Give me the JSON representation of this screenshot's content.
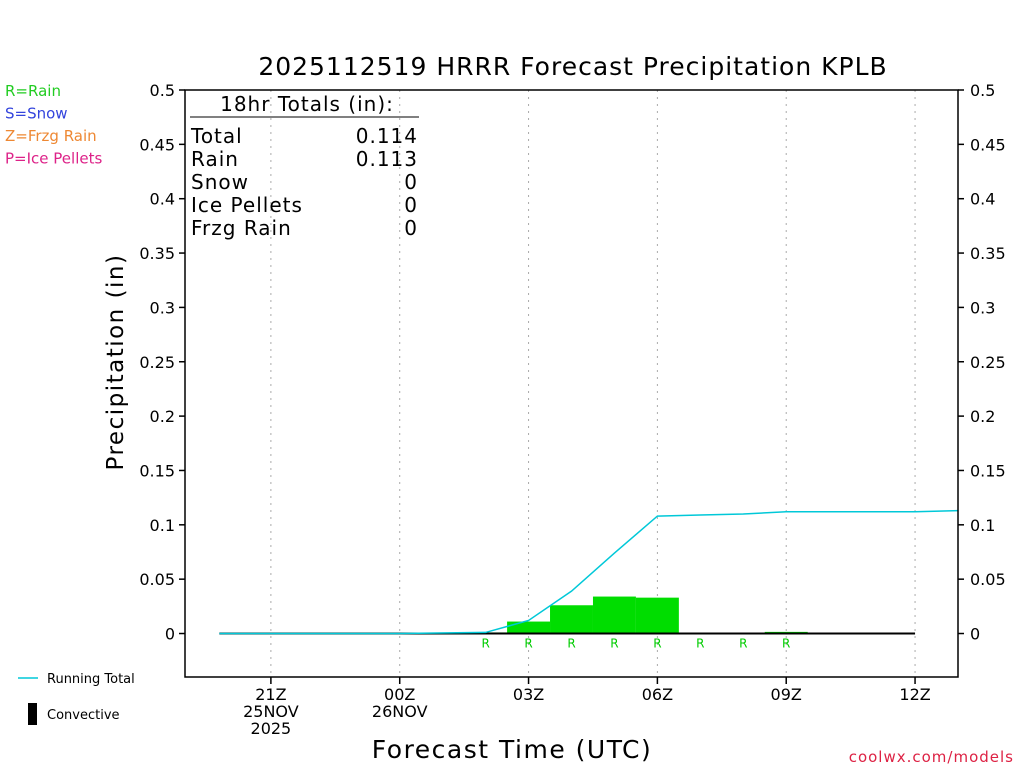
{
  "chart_data": {
    "type": "bar",
    "title": "2025112519 HRRR Forecast Precipitation KPLB",
    "xlabel": "Forecast Time (UTC)",
    "ylabel": "Precipitation (in)",
    "ylim": [
      -0.04,
      0.5
    ],
    "y_ticks": [
      "0.5",
      "0.45",
      "0.4",
      "0.35",
      "0.3",
      "0.25",
      "0.2",
      "0.15",
      "0.1",
      "0.05",
      "0"
    ],
    "y_tick_values": [
      0.5,
      0.45,
      0.4,
      0.35,
      0.3,
      0.25,
      0.2,
      0.15,
      0.1,
      0.05,
      0
    ],
    "x_range_hours": [
      19,
      37
    ],
    "x_ticks": [
      {
        "hour": 21,
        "lines": [
          "21Z",
          "25NOV",
          "2025"
        ]
      },
      {
        "hour": 24,
        "lines": [
          "00Z",
          "26NOV"
        ]
      },
      {
        "hour": 27,
        "lines": [
          "03Z"
        ]
      },
      {
        "hour": 30,
        "lines": [
          "06Z"
        ]
      },
      {
        "hour": 33,
        "lines": [
          "09Z"
        ]
      },
      {
        "hour": 36,
        "lines": [
          "12Z"
        ]
      }
    ],
    "grid": true,
    "bars": {
      "name": "Rain",
      "color": "#00dd00",
      "hours": [
        20,
        21,
        22,
        23,
        24,
        25,
        26,
        27,
        28,
        29,
        30,
        31,
        32,
        33,
        34,
        35,
        36
      ],
      "values": [
        0,
        0,
        0,
        0,
        0,
        0,
        0.001,
        0.011,
        0.026,
        0.034,
        0.033,
        0.0005,
        0.0005,
        0.0015,
        0,
        0,
        0
      ]
    },
    "running_total": {
      "name": "Running Total",
      "color": "#00c8d8",
      "hours": [
        19.8,
        24,
        26,
        27,
        28,
        29,
        30,
        31,
        32,
        33,
        34,
        35,
        36,
        37
      ],
      "values": [
        0,
        0,
        0.001,
        0.012,
        0.039,
        0.074,
        0.108,
        0.109,
        0.11,
        0.112,
        0.112,
        0.112,
        0.112,
        0.113
      ]
    },
    "ptype_markers": {
      "color": "#00cc00",
      "hours": [
        26,
        27,
        28,
        29,
        30,
        31,
        32,
        33
      ],
      "labels": [
        "R",
        "R",
        "R",
        "R",
        "R",
        "R",
        "R",
        "R"
      ]
    },
    "totals_box": {
      "header": "18hr Totals (in):",
      "rows": [
        {
          "label": "Total",
          "value": "0.114"
        },
        {
          "label": "Rain",
          "value": "0.113"
        },
        {
          "label": "Snow",
          "value": "0"
        },
        {
          "label": "Ice Pellets",
          "value": "0"
        },
        {
          "label": "Frzg Rain",
          "value": "0"
        }
      ]
    },
    "ptype_legend": [
      {
        "text": "R=Rain",
        "color": "#22cc22"
      },
      {
        "text": "S=Snow",
        "color": "#3344dd"
      },
      {
        "text": "Z=Frzg Rain",
        "color": "#ee8833"
      },
      {
        "text": "P=Ice Pellets",
        "color": "#dd2288"
      }
    ],
    "bottom_legend": [
      {
        "text": "Running Total",
        "kind": "line",
        "color": "#00c8d8"
      },
      {
        "text": "Convective",
        "kind": "box",
        "color": "#000000"
      }
    ],
    "credit": {
      "text": "coolwx.com/models",
      "color": "#dd2244"
    }
  }
}
